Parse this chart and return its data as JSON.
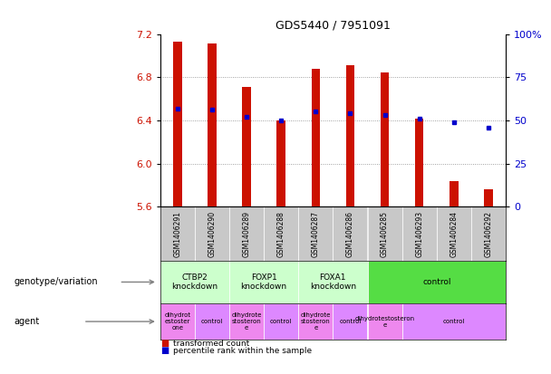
{
  "title": "GDS5440 / 7951091",
  "samples": [
    "GSM1406291",
    "GSM1406290",
    "GSM1406289",
    "GSM1406288",
    "GSM1406287",
    "GSM1406286",
    "GSM1406285",
    "GSM1406293",
    "GSM1406284",
    "GSM1406292"
  ],
  "transformed_count": [
    7.13,
    7.11,
    6.71,
    6.4,
    6.88,
    6.91,
    6.84,
    6.42,
    5.84,
    5.76
  ],
  "percentile_rank": [
    57,
    56,
    52,
    50,
    55,
    54,
    53,
    51,
    49,
    46
  ],
  "ylim": [
    5.6,
    7.2
  ],
  "yticks_left": [
    5.6,
    6.0,
    6.4,
    6.8,
    7.2
  ],
  "yticks_right": [
    0,
    25,
    50,
    75,
    100
  ],
  "bar_color": "#cc1100",
  "dot_color": "#0000cc",
  "gsm_bg": "#c8c8c8",
  "gsm_border": "#ffffff",
  "genotype_groups": [
    {
      "label": "CTBP2\nknockdown",
      "start": 0,
      "end": 2,
      "color": "#ccffcc"
    },
    {
      "label": "FOXP1\nknockdown",
      "start": 2,
      "end": 4,
      "color": "#ccffcc"
    },
    {
      "label": "FOXA1\nknockdown",
      "start": 4,
      "end": 6,
      "color": "#ccffcc"
    },
    {
      "label": "control",
      "start": 6,
      "end": 10,
      "color": "#55dd44"
    }
  ],
  "agent_groups": [
    {
      "label": "dihydrot\nestoster\none",
      "start": 0,
      "end": 1,
      "color": "#ee88ee"
    },
    {
      "label": "control",
      "start": 1,
      "end": 2,
      "color": "#dd88ff"
    },
    {
      "label": "dihydrote\nstosteron\ne",
      "start": 2,
      "end": 3,
      "color": "#ee88ee"
    },
    {
      "label": "control",
      "start": 3,
      "end": 4,
      "color": "#dd88ff"
    },
    {
      "label": "dihydrote\nstosteron\ne",
      "start": 4,
      "end": 5,
      "color": "#ee88ee"
    },
    {
      "label": "control",
      "start": 5,
      "end": 6,
      "color": "#dd88ff"
    },
    {
      "label": "dihydrotestosteron\ne",
      "start": 6,
      "end": 7,
      "color": "#ee88ee"
    },
    {
      "label": "control",
      "start": 7,
      "end": 10,
      "color": "#dd88ff"
    }
  ],
  "legend_items": [
    {
      "label": "transformed count",
      "color": "#cc1100"
    },
    {
      "label": "percentile rank within the sample",
      "color": "#0000cc"
    }
  ],
  "left_label_genotype": "genotype/variation",
  "left_label_agent": "agent",
  "grid_color": "#888888",
  "grid_hlines": [
    6.0,
    6.4,
    6.8
  ]
}
